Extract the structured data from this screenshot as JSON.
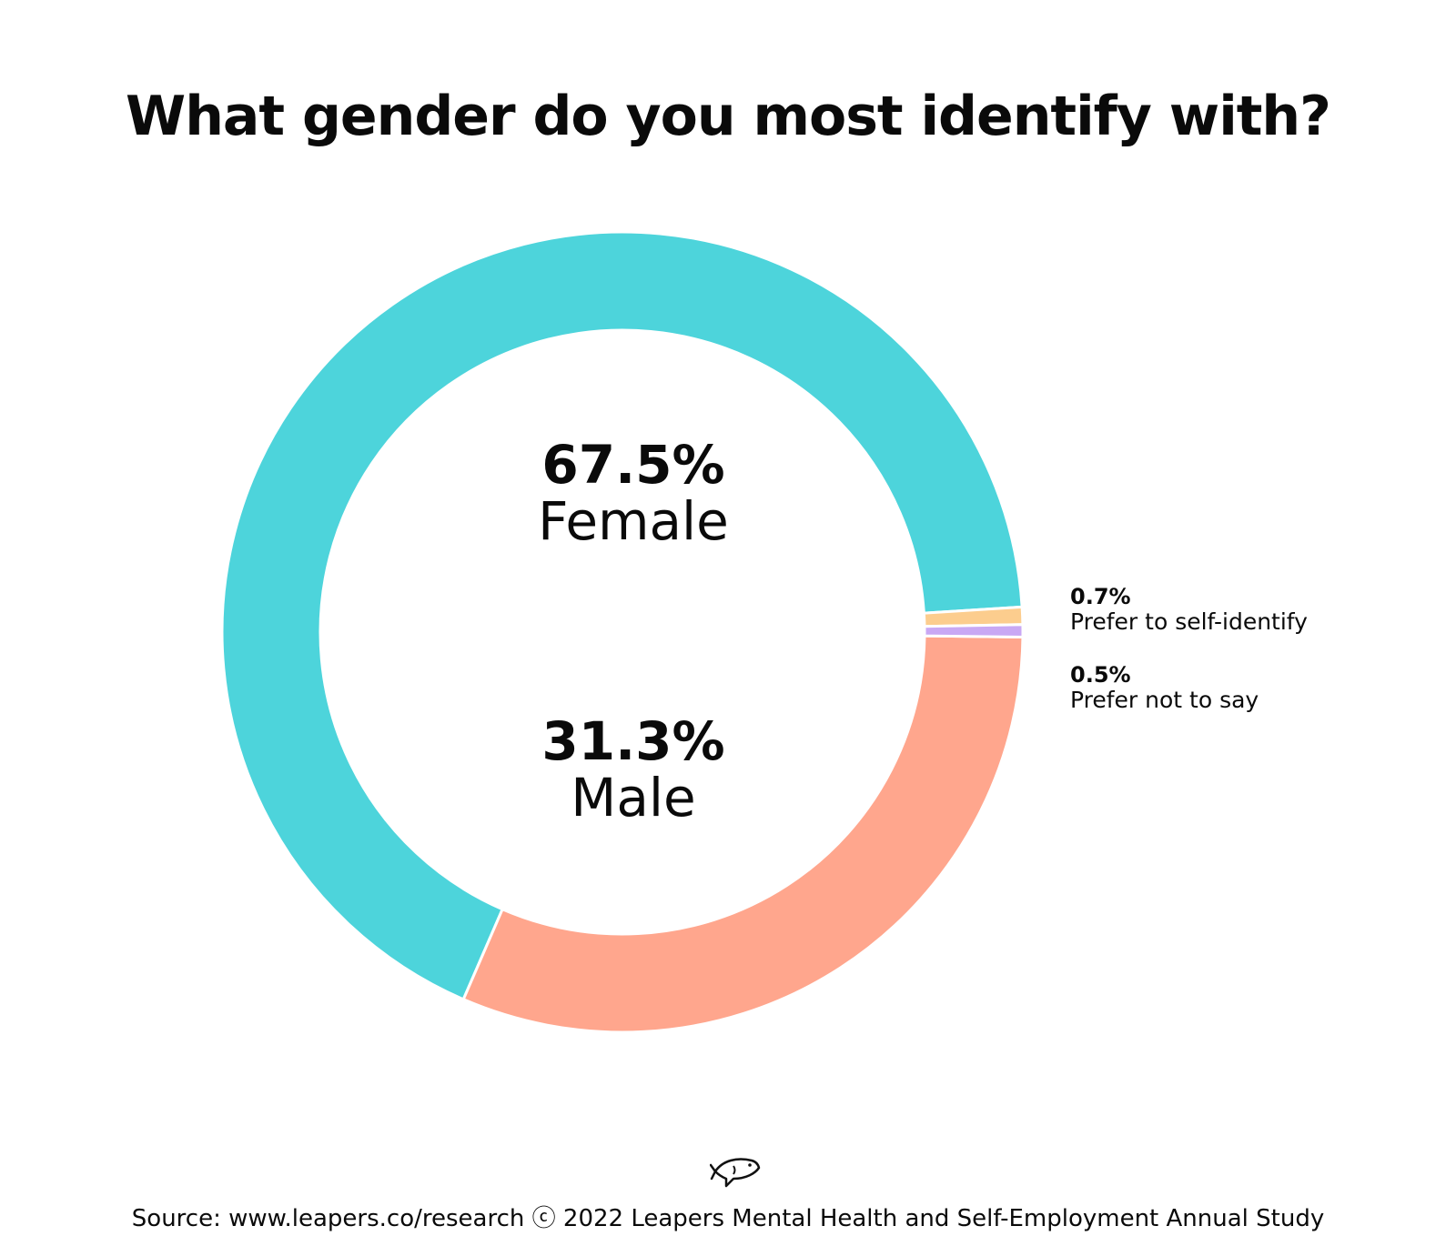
{
  "title": "What gender do you most identify with?",
  "colors": {
    "female": "#4dd4db",
    "male": "#ffa68d",
    "self_identify": "#fccd8e",
    "not_say": "#c9a8f4"
  },
  "labels": {
    "female": {
      "pct": "67.5%",
      "name": "Female"
    },
    "male": {
      "pct": "31.3%",
      "name": "Male"
    },
    "self_identify": {
      "pct": "0.7%",
      "name": "Prefer to self-identify"
    },
    "not_say": {
      "pct": "0.5%",
      "name": "Prefer not to say"
    }
  },
  "logo_icon": "fish-icon",
  "source": "Source: www.leapers.co/research ⓒ 2022 Leapers Mental Health and Self-Employment Annual Study",
  "chart_data": {
    "type": "pie",
    "style": "donut",
    "title": "What gender do you most identify with?",
    "categories": [
      "Female",
      "Male",
      "Prefer to self-identify",
      "Prefer not to say"
    ],
    "values": [
      67.5,
      31.3,
      0.7,
      0.5
    ],
    "unit": "%",
    "legend": "none",
    "slice_order": "clockwise from 3 o'clock: Prefer to self-identify, Prefer not to say, Male, Female"
  }
}
